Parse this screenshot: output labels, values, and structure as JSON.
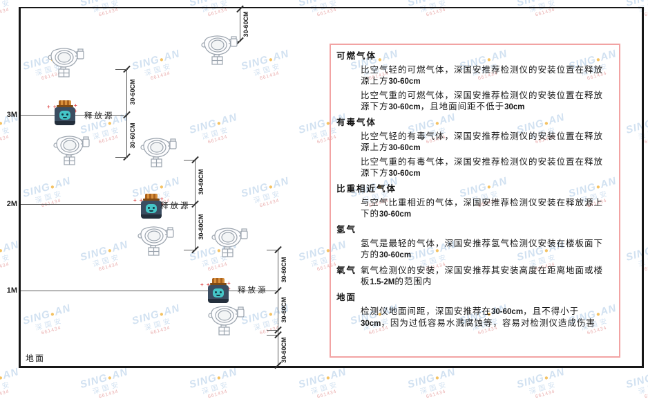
{
  "diagram": {
    "heights": [
      "3M",
      "2M",
      "1M"
    ],
    "ground_label": "地面",
    "release_source_label": "释放源",
    "dim_label": "30-60CM"
  },
  "panel": {
    "sections": [
      {
        "heading": "可燃气体",
        "paragraphs": [
          "比空气轻的可燃气体，深国安推荐检测仪的安装位置在释放源上方30-60cm",
          "比空气重的可燃气体，深国安推荐检测仪的安装位置在释放源下方30-60cm，且地面间距不低于30cm"
        ]
      },
      {
        "heading": "有毒气体",
        "paragraphs": [
          "比空气轻的有毒气体，深国安推荐检测仪的安装位置在释放源上方30-60cm",
          "比空气重的有毒气体，深国安推荐检测仪的安装位置在释放源下方30-60cm"
        ]
      },
      {
        "heading": "比重相近气体",
        "paragraphs": [
          "与空气比重相近的气体，深国安推荐检测仪安装在释放源上下的30-60cm"
        ]
      },
      {
        "heading": "氢气",
        "paragraphs": [
          "氢气是最轻的气体，深国安推荐氢气检测仪安装在楼板面下方的30-60cm"
        ]
      },
      {
        "heading": "氧气",
        "paragraphs": [
          "氧气检测仪的安装，深国安推荐其安装高度在距离地面或楼板1.5-2M的范围内"
        ]
      },
      {
        "heading": "地面",
        "paragraphs": [
          "检测仪地面间距，深国安推荐在30-60cm，且不得小于30cm，因为过低容易水溅腐蚀等，容易对检测仪造成伤害"
        ]
      }
    ]
  },
  "watermark": {
    "brand_left": "SING",
    "dot": "●",
    "brand_right": "AN",
    "cn": "深国安",
    "red": "661434"
  },
  "colors": {
    "panel_border": "#f2a3a3",
    "frame": "#161616",
    "source_body": "#3b4d61",
    "source_cap": "#d8903d",
    "source_face": "#45c6c7",
    "watermark_blue": "#c6daee",
    "watermark_dot": "#f2b33d",
    "watermark_red": "#e59a9a",
    "detector_stroke": "#9aa3ad"
  }
}
